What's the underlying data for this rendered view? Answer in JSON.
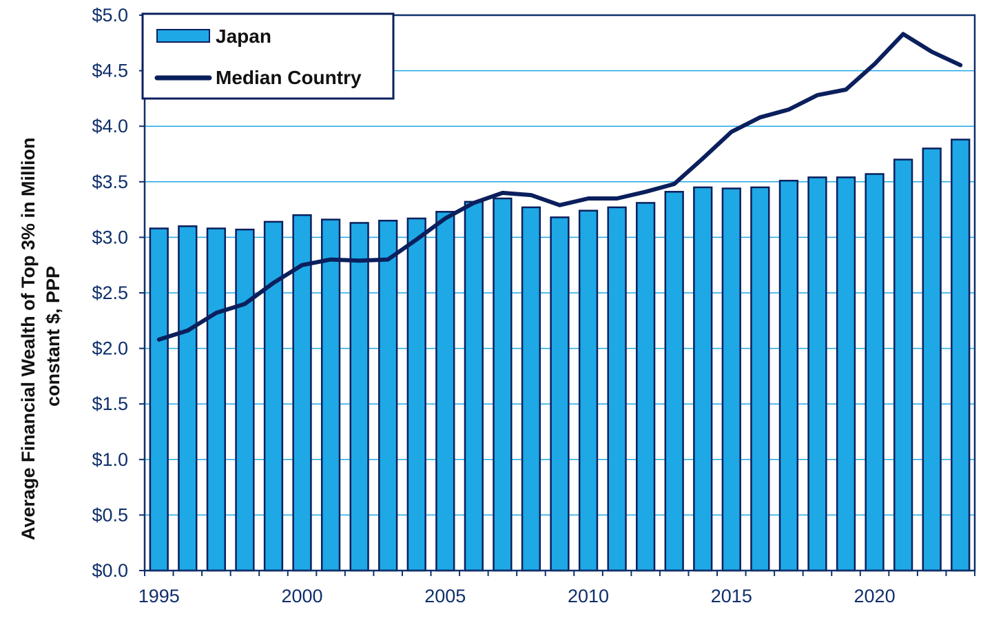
{
  "chart_data": {
    "type": "bar",
    "ylabel": "Average Financial Wealth of Top 3% in Million constant  $, PPP",
    "ylabel_lines": [
      "Average Financial Wealth of Top 3% in Million",
      "constant  $, PPP"
    ],
    "xlabel": "",
    "ylim": [
      0,
      5
    ],
    "y_ticks": [
      "$0.0",
      "$0.5",
      "$1.0",
      "$1.5",
      "$2.0",
      "$2.5",
      "$3.0",
      "$3.5",
      "$4.0",
      "$4.5",
      "$5.0"
    ],
    "x_tick_labels": [
      "1995",
      "2000",
      "2005",
      "2010",
      "2015",
      "2020"
    ],
    "x": [
      1995,
      1996,
      1997,
      1998,
      1999,
      2000,
      2001,
      2002,
      2003,
      2004,
      2005,
      2006,
      2007,
      2008,
      2009,
      2010,
      2011,
      2012,
      2013,
      2014,
      2015,
      2016,
      2017,
      2018,
      2019,
      2020,
      2021,
      2022,
      2023
    ],
    "grid": true,
    "legend_position": "top-left",
    "series": [
      {
        "name": "Japan",
        "kind": "bar",
        "color": "#1ea8e6",
        "values": [
          3.08,
          3.1,
          3.08,
          3.07,
          3.14,
          3.2,
          3.16,
          3.13,
          3.15,
          3.17,
          3.23,
          3.32,
          3.35,
          3.27,
          3.18,
          3.24,
          3.27,
          3.31,
          3.41,
          3.45,
          3.44,
          3.45,
          3.51,
          3.54,
          3.54,
          3.57,
          3.7,
          3.8,
          3.88
        ]
      },
      {
        "name": "Median Country",
        "kind": "line",
        "color": "#0b1f5c",
        "values": [
          2.08,
          2.16,
          2.32,
          2.4,
          2.59,
          2.75,
          2.8,
          2.79,
          2.8,
          2.98,
          3.17,
          3.31,
          3.4,
          3.38,
          3.29,
          3.35,
          3.35,
          3.41,
          3.48,
          3.71,
          3.95,
          4.08,
          4.15,
          4.28,
          4.33,
          4.56,
          4.83,
          4.67,
          4.55
        ]
      }
    ]
  }
}
